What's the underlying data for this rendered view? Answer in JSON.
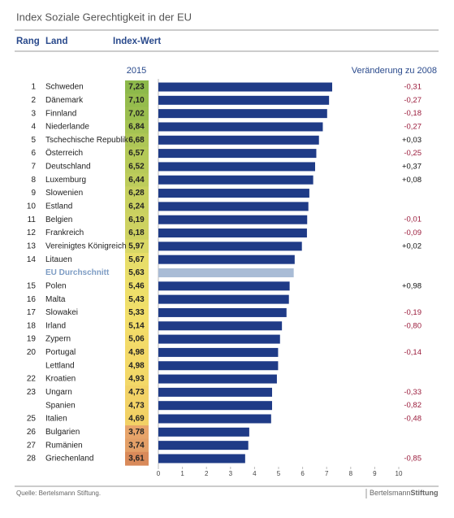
{
  "chart_data": {
    "type": "bar",
    "title": "Index Soziale Gerechtigkeit in der EU",
    "rank_header": "Rang",
    "country_header": "Land",
    "value_header": "Index-Wert",
    "year": "2015",
    "change_header": "Veränderung zu 2008",
    "source": "Quelle: Bertelsmann Stiftung.",
    "logo": [
      "Bertelsmann",
      "Stiftung"
    ],
    "ranks": [
      1,
      2,
      3,
      4,
      5,
      6,
      7,
      8,
      9,
      10,
      11,
      12,
      13,
      14,
      null,
      15,
      16,
      17,
      18,
      19,
      20,
      null,
      22,
      23,
      null,
      25,
      26,
      27,
      28
    ],
    "categories": [
      "Schweden",
      "Dänemark",
      "Finnland",
      "Niederlande",
      "Tschechische Republik",
      "Österreich",
      "Deutschland",
      "Luxemburg",
      "Slowenien",
      "Estland",
      "Belgien",
      "Frankreich",
      "Vereinigtes Königreich",
      "Litauen",
      "EU Durchschnitt",
      "Polen",
      "Malta",
      "Slowakei",
      "Irland",
      "Zypern",
      "Portugal",
      "Lettland",
      "Kroatien",
      "Ungarn",
      "Spanien",
      "Italien",
      "Bulgarien",
      "Rumänien",
      "Griechenland"
    ],
    "values": [
      7.23,
      7.1,
      7.02,
      6.84,
      6.68,
      6.57,
      6.52,
      6.44,
      6.28,
      6.24,
      6.19,
      6.18,
      5.97,
      5.67,
      5.63,
      5.46,
      5.43,
      5.33,
      5.14,
      5.06,
      4.98,
      4.98,
      4.93,
      4.73,
      4.73,
      4.69,
      3.78,
      3.74,
      3.61
    ],
    "value_labels": [
      "7,23",
      "7,10",
      "7,02",
      "6,84",
      "6,68",
      "6,57",
      "6,52",
      "6,44",
      "6,28",
      "6,24",
      "6,19",
      "6,18",
      "5,97",
      "5,67",
      "5,63",
      "5,46",
      "5,43",
      "5,33",
      "5,14",
      "5,06",
      "4,98",
      "4,98",
      "4,93",
      "4,73",
      "4,73",
      "4,69",
      "3,78",
      "3,74",
      "3,61"
    ],
    "changes": [
      -0.31,
      -0.27,
      -0.18,
      -0.27,
      0.03,
      -0.25,
      0.37,
      0.08,
      null,
      null,
      -0.01,
      -0.09,
      0.02,
      null,
      null,
      0.98,
      null,
      -0.19,
      -0.8,
      null,
      -0.14,
      null,
      null,
      -0.33,
      -0.82,
      -0.48,
      null,
      null,
      -0.85
    ],
    "change_labels": [
      "-0,31",
      "-0,27",
      "-0,18",
      "-0,27",
      "+0,03",
      "-0,25",
      "+0,37",
      "+0,08",
      null,
      null,
      "-0,01",
      "-0,09",
      "+0,02",
      null,
      null,
      "+0,98",
      null,
      "-0,19",
      "-0,80",
      null,
      "-0,14",
      null,
      null,
      "-0,33",
      "-0,82",
      "-0,48",
      null,
      null,
      "-0,85"
    ],
    "highlight_index": 14,
    "color": "#1f3b87",
    "highlight_color": "#a9bcd6",
    "cell_colors": [
      "#8db94b",
      "#95bc4d",
      "#9abe4f",
      "#a5c353",
      "#aec656",
      "#b4c958",
      "#b8ca59",
      "#bdcc5b",
      "#c7d05f",
      "#cad160",
      "#cdd261",
      "#ced262",
      "#dad866",
      "#e8de69",
      "#e9de6a",
      "#eedf6a",
      "#efdf6a",
      "#f2df6a",
      "#f3dd69",
      "#f3db69",
      "#f3d968",
      "#f3d968",
      "#f3d868",
      "#f2d266",
      "#f2d266",
      "#f2d165",
      "#e7a46a",
      "#e39f67",
      "#d98a5a"
    ],
    "negative_color": "#9b1c3c",
    "positive_color": "#111111",
    "xlim": [
      0,
      10
    ],
    "xticks": [
      0,
      1,
      2,
      3,
      4,
      5,
      6,
      7,
      8,
      9,
      10
    ]
  }
}
